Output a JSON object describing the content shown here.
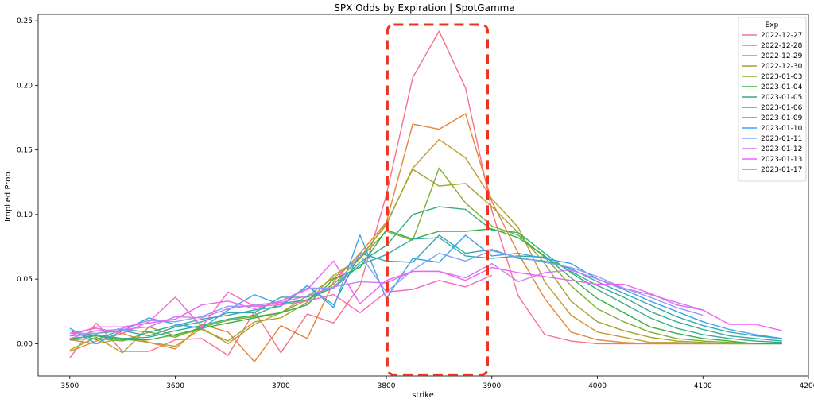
{
  "chart_data": {
    "type": "line",
    "title": "SPX Odds by Expiration | SpotGamma",
    "xlabel": "strike",
    "ylabel": "Implied Prob.",
    "xlim": [
      3470,
      4200
    ],
    "ylim": [
      -0.025,
      0.255
    ],
    "x_ticks": [
      3500,
      3600,
      3700,
      3800,
      3900,
      4000,
      4100,
      4200
    ],
    "y_ticks": [
      0.0,
      0.05,
      0.1,
      0.15,
      0.2,
      0.25
    ],
    "legend_title": "Exp",
    "legend_position": "top-right",
    "highlight": {
      "x_range": [
        3801,
        3896
      ],
      "y_range": [
        -0.024,
        0.247
      ],
      "style": "dashed-red-box"
    },
    "series": [
      {
        "name": "2022-12-27",
        "color": "#f77189",
        "x": [
          3500,
          3525,
          3550,
          3575,
          3600,
          3625,
          3650,
          3675,
          3700,
          3725,
          3750,
          3775,
          3800,
          3825,
          3850,
          3875,
          3900,
          3925,
          3950,
          3975,
          4000,
          4025,
          4050,
          4075,
          4100
        ],
        "values": [
          -0.011,
          0.016,
          -0.006,
          -0.006,
          0.003,
          0.004,
          -0.009,
          0.025,
          -0.007,
          0.023,
          0.016,
          0.045,
          0.115,
          0.206,
          0.242,
          0.198,
          0.103,
          0.037,
          0.007,
          0.002,
          0.0,
          0.0,
          0.0,
          0.0,
          0.0
        ]
      },
      {
        "name": "2022-12-28",
        "color": "#e5853b",
        "x": [
          3500,
          3525,
          3550,
          3575,
          3600,
          3625,
          3650,
          3675,
          3700,
          3725,
          3750,
          3775,
          3800,
          3825,
          3850,
          3875,
          3900,
          3925,
          3950,
          3975,
          4000,
          4025,
          4050,
          4075,
          4100,
          4125,
          4150
        ],
        "values": [
          -0.006,
          0.002,
          0.008,
          0.001,
          -0.004,
          0.015,
          0.009,
          -0.014,
          0.014,
          0.004,
          0.048,
          0.07,
          0.094,
          0.17,
          0.166,
          0.178,
          0.11,
          0.07,
          0.035,
          0.009,
          0.003,
          0.001,
          0.0,
          0.0,
          0.0,
          0.0,
          0.0
        ]
      },
      {
        "name": "2022-12-29",
        "color": "#c39a31",
        "x": [
          3500,
          3525,
          3550,
          3575,
          3600,
          3625,
          3650,
          3675,
          3700,
          3725,
          3750,
          3775,
          3800,
          3825,
          3850,
          3875,
          3900,
          3925,
          3950,
          3975,
          4000,
          4025,
          4050,
          4075,
          4100,
          4125,
          4150
        ],
        "values": [
          0.003,
          0.0,
          0.004,
          0.001,
          -0.002,
          0.012,
          0.0,
          0.015,
          0.024,
          0.037,
          0.051,
          0.067,
          0.092,
          0.136,
          0.158,
          0.144,
          0.112,
          0.09,
          0.048,
          0.022,
          0.009,
          0.005,
          0.001,
          0.001,
          0.0,
          0.0,
          0.0
        ]
      },
      {
        "name": "2022-12-30",
        "color": "#a2a430",
        "x": [
          3500,
          3525,
          3550,
          3575,
          3600,
          3625,
          3650,
          3675,
          3700,
          3725,
          3750,
          3775,
          3800,
          3825,
          3850,
          3875,
          3900,
          3925,
          3950,
          3975,
          4000,
          4025,
          4050,
          4075,
          4100,
          4125,
          4150,
          4175
        ],
        "values": [
          -0.005,
          0.005,
          -0.007,
          0.013,
          0.006,
          0.011,
          0.002,
          0.017,
          0.02,
          0.032,
          0.053,
          0.066,
          0.093,
          0.135,
          0.122,
          0.124,
          0.106,
          0.086,
          0.062,
          0.033,
          0.017,
          0.01,
          0.005,
          0.002,
          0.001,
          0.0,
          0.0,
          0.0
        ]
      },
      {
        "name": "2023-01-03",
        "color": "#7faf32",
        "x": [
          3500,
          3525,
          3550,
          3575,
          3600,
          3625,
          3650,
          3675,
          3700,
          3725,
          3750,
          3775,
          3800,
          3825,
          3850,
          3875,
          3900,
          3925,
          3950,
          3975,
          4000,
          4025,
          4050,
          4075,
          4100,
          4125,
          4150,
          4175
        ],
        "values": [
          0.003,
          0.004,
          0.002,
          0.009,
          0.005,
          0.013,
          0.018,
          0.021,
          0.024,
          0.034,
          0.046,
          0.066,
          0.087,
          0.08,
          0.136,
          0.109,
          0.091,
          0.084,
          0.067,
          0.045,
          0.027,
          0.017,
          0.009,
          0.004,
          0.002,
          0.001,
          0.0,
          0.0
        ]
      },
      {
        "name": "2023-01-04",
        "color": "#32b144",
        "x": [
          3500,
          3525,
          3550,
          3575,
          3600,
          3625,
          3650,
          3675,
          3700,
          3725,
          3750,
          3775,
          3800,
          3825,
          3850,
          3875,
          3900,
          3925,
          3950,
          3975,
          4000,
          4025,
          4050,
          4075,
          4100,
          4125,
          4150,
          4175
        ],
        "values": [
          0.004,
          0.006,
          0.003,
          0.003,
          0.007,
          0.012,
          0.016,
          0.02,
          0.024,
          0.03,
          0.05,
          0.059,
          0.088,
          0.081,
          0.087,
          0.087,
          0.089,
          0.082,
          0.068,
          0.051,
          0.035,
          0.024,
          0.013,
          0.008,
          0.004,
          0.002,
          0.0,
          0.0
        ]
      },
      {
        "name": "2023-01-05",
        "color": "#35ae81",
        "x": [
          3500,
          3525,
          3550,
          3575,
          3600,
          3625,
          3650,
          3675,
          3700,
          3725,
          3750,
          3775,
          3800,
          3825,
          3850,
          3875,
          3900,
          3925,
          3950,
          3975,
          4000,
          4025,
          4050,
          4075,
          4100,
          4125,
          4150,
          4175
        ],
        "values": [
          0.003,
          0.007,
          0.004,
          0.005,
          0.01,
          0.014,
          0.019,
          0.022,
          0.031,
          0.034,
          0.044,
          0.063,
          0.076,
          0.1,
          0.106,
          0.104,
          0.088,
          0.086,
          0.07,
          0.055,
          0.042,
          0.031,
          0.02,
          0.012,
          0.007,
          0.004,
          0.002,
          0.001
        ]
      },
      {
        "name": "2023-01-06",
        "color": "#37ab9c",
        "x": [
          3500,
          3525,
          3550,
          3575,
          3600,
          3625,
          3650,
          3675,
          3700,
          3725,
          3750,
          3775,
          3800,
          3825,
          3850,
          3875,
          3900,
          3925,
          3950,
          3975,
          4000,
          4025,
          4050,
          4075,
          4100,
          4125,
          4150,
          4175
        ],
        "values": [
          0.006,
          0.008,
          0.01,
          0.006,
          0.013,
          0.017,
          0.024,
          0.024,
          0.036,
          0.036,
          0.043,
          0.061,
          0.069,
          0.081,
          0.082,
          0.068,
          0.066,
          0.068,
          0.067,
          0.056,
          0.045,
          0.036,
          0.025,
          0.017,
          0.011,
          0.006,
          0.004,
          0.002
        ]
      },
      {
        "name": "2023-01-09",
        "color": "#39a8b0",
        "x": [
          3500,
          3525,
          3550,
          3575,
          3600,
          3625,
          3650,
          3675,
          3700,
          3725,
          3750,
          3775,
          3800,
          3825,
          3850,
          3875,
          3900,
          3925,
          3950,
          3975,
          4000,
          4025,
          4050,
          4075,
          4100,
          4125,
          4150,
          4175
        ],
        "values": [
          0.01,
          0.003,
          0.011,
          0.009,
          0.014,
          0.019,
          0.022,
          0.026,
          0.029,
          0.045,
          0.03,
          0.07,
          0.064,
          0.063,
          0.084,
          0.07,
          0.073,
          0.066,
          0.064,
          0.058,
          0.048,
          0.039,
          0.03,
          0.021,
          0.014,
          0.009,
          0.006,
          0.004
        ]
      },
      {
        "name": "2023-01-10",
        "color": "#3ba3ec",
        "x": [
          3500,
          3525,
          3550,
          3575,
          3600,
          3625,
          3650,
          3675,
          3700,
          3725,
          3750,
          3775,
          3800,
          3825,
          3850,
          3875,
          3900,
          3925,
          3950,
          3975,
          4000,
          4025,
          4050,
          4075,
          4100,
          4125,
          4150,
          4175
        ],
        "values": [
          0.012,
          0.0,
          0.01,
          0.02,
          0.015,
          0.012,
          0.026,
          0.038,
          0.03,
          0.045,
          0.028,
          0.084,
          0.035,
          0.066,
          0.063,
          0.084,
          0.068,
          0.07,
          0.066,
          0.062,
          0.05,
          0.042,
          0.033,
          0.025,
          0.017,
          0.011,
          0.007,
          0.004
        ]
      },
      {
        "name": "2023-01-11",
        "color": "#8e9ef6",
        "x": [
          3500,
          3525,
          3550,
          3575,
          3600,
          3625,
          3650,
          3675,
          3700,
          3725,
          3750,
          3775,
          3800,
          3825,
          3850,
          3875,
          3900,
          3925,
          3950,
          3975,
          4000,
          4025,
          4050,
          4075,
          4100
        ],
        "values": [
          0.008,
          0.008,
          0.012,
          0.018,
          0.017,
          0.021,
          0.029,
          0.029,
          0.033,
          0.043,
          0.043,
          0.069,
          0.04,
          0.057,
          0.07,
          0.064,
          0.072,
          0.067,
          0.063,
          0.059,
          0.052,
          0.043,
          0.036,
          0.028,
          0.022
        ]
      },
      {
        "name": "2023-01-12",
        "color": "#cd7ef5",
        "x": [
          3500,
          3525,
          3550,
          3575,
          3600,
          3625,
          3650,
          3675,
          3700,
          3725,
          3750,
          3775,
          3800,
          3825,
          3850,
          3875,
          3900,
          3925,
          3950,
          3975,
          4000,
          4025,
          4050,
          4075,
          4100
        ],
        "values": [
          0.004,
          0.01,
          0.011,
          0.013,
          0.021,
          0.02,
          0.027,
          0.03,
          0.032,
          0.037,
          0.044,
          0.048,
          0.047,
          0.056,
          0.056,
          0.051,
          0.062,
          0.048,
          0.055,
          0.057,
          0.05,
          0.043,
          0.038,
          0.032,
          0.026
        ]
      },
      {
        "name": "2023-01-13",
        "color": "#f161f5",
        "x": [
          3500,
          3525,
          3550,
          3575,
          3600,
          3625,
          3650,
          3675,
          3700,
          3725,
          3750,
          3775,
          3800,
          3825,
          3850,
          3875,
          3900,
          3925,
          3950,
          3975,
          4000,
          4025,
          4050,
          4075,
          4100,
          4125,
          4150,
          4175
        ],
        "values": [
          0.006,
          0.013,
          0.013,
          0.016,
          0.019,
          0.03,
          0.033,
          0.027,
          0.033,
          0.042,
          0.064,
          0.031,
          0.049,
          0.056,
          0.056,
          0.049,
          0.059,
          0.055,
          0.052,
          0.049,
          0.046,
          0.046,
          0.039,
          0.03,
          0.026,
          0.015,
          0.015,
          0.01
        ]
      },
      {
        "name": "2023-01-17",
        "color": "#f667c6",
        "x": [
          3500,
          3525,
          3550,
          3575,
          3600,
          3625,
          3650,
          3675,
          3700,
          3725,
          3750,
          3775,
          3800,
          3825,
          3850,
          3875,
          3900
        ],
        "values": [
          0.008,
          0.012,
          0.008,
          0.017,
          0.036,
          0.013,
          0.04,
          0.029,
          0.03,
          0.033,
          0.038,
          0.024,
          0.04,
          0.042,
          0.049,
          0.044,
          0.053
        ]
      }
    ]
  }
}
